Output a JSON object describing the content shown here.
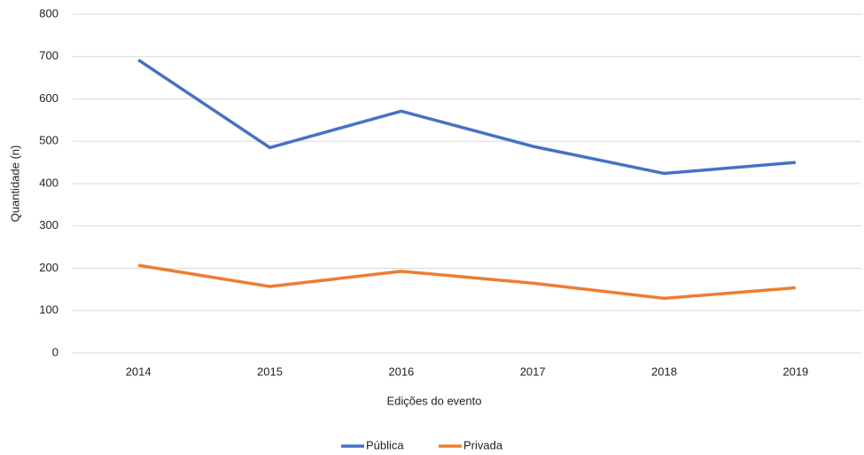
{
  "chart_data": {
    "type": "line",
    "x_label": "Edições do evento",
    "y_label": "Quantidade (n)",
    "categories": [
      "2014",
      "2015",
      "2016",
      "2017",
      "2018",
      "2019"
    ],
    "series": [
      {
        "name": "Pública",
        "color": "#4472c4",
        "values": [
          692,
          485,
          571,
          488,
          424,
          450
        ]
      },
      {
        "name": "Privada",
        "color": "#ed7d31",
        "values": [
          207,
          157,
          193,
          165,
          129,
          154
        ]
      }
    ],
    "ylim": [
      0,
      800
    ],
    "yticks": [
      0,
      100,
      200,
      300,
      400,
      500,
      600,
      700,
      800
    ],
    "grid": true,
    "legend": "bottom"
  }
}
